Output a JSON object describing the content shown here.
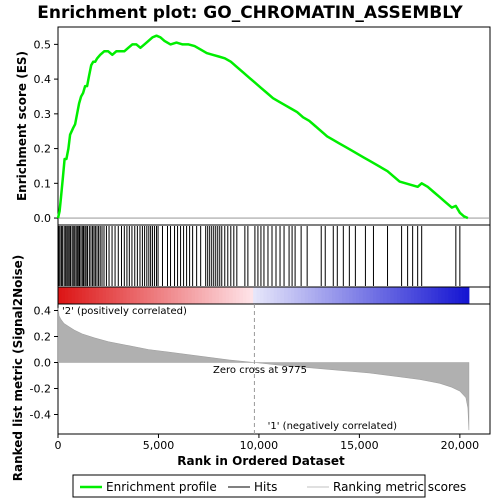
{
  "chart_data": {
    "type": "line",
    "title": "Enrichment plot: GO_CHROMATIN_ASSEMBLY",
    "top_panel": {
      "ylabel": "Enrichment score (ES)",
      "ylim": [
        -0.02,
        0.55
      ],
      "yticks": [
        "0.0",
        "0.1",
        "0.2",
        "0.3",
        "0.4",
        "0.5"
      ],
      "ytick_values": [
        0.0,
        0.1,
        0.2,
        0.3,
        0.4,
        0.5
      ],
      "series": [
        {
          "name": "Enrichment profile",
          "color": "#00ee00",
          "x": [
            0,
            80,
            150,
            250,
            330,
            420,
            520,
            600,
            680,
            760,
            850,
            950,
            1050,
            1150,
            1250,
            1350,
            1450,
            1550,
            1650,
            1750,
            1850,
            1950,
            2100,
            2300,
            2500,
            2700,
            2900,
            3100,
            3300,
            3500,
            3700,
            3900,
            4100,
            4300,
            4500,
            4700,
            4900,
            5100,
            5300,
            5600,
            5900,
            6200,
            6500,
            6800,
            7100,
            7400,
            7700,
            8000,
            8300,
            8600,
            8900,
            9200,
            9500,
            9800,
            10100,
            10400,
            10700,
            11000,
            11300,
            11600,
            11900,
            12200,
            12500,
            12800,
            13100,
            13400,
            13700,
            14000,
            14300,
            14600,
            14900,
            15200,
            15500,
            15800,
            16100,
            16400,
            16700,
            17000,
            17300,
            17600,
            17900,
            18100,
            18400,
            18700,
            19000,
            19300,
            19600,
            19800,
            20000,
            20200,
            20400
          ],
          "y": [
            0.0,
            0.02,
            0.06,
            0.12,
            0.17,
            0.17,
            0.2,
            0.24,
            0.25,
            0.26,
            0.27,
            0.3,
            0.33,
            0.35,
            0.36,
            0.38,
            0.38,
            0.41,
            0.44,
            0.45,
            0.45,
            0.46,
            0.47,
            0.48,
            0.48,
            0.47,
            0.48,
            0.48,
            0.48,
            0.49,
            0.5,
            0.5,
            0.49,
            0.5,
            0.51,
            0.52,
            0.525,
            0.52,
            0.51,
            0.5,
            0.505,
            0.5,
            0.5,
            0.495,
            0.485,
            0.475,
            0.47,
            0.465,
            0.46,
            0.45,
            0.435,
            0.42,
            0.405,
            0.39,
            0.375,
            0.36,
            0.345,
            0.335,
            0.325,
            0.315,
            0.305,
            0.29,
            0.28,
            0.265,
            0.25,
            0.235,
            0.225,
            0.215,
            0.205,
            0.195,
            0.185,
            0.175,
            0.165,
            0.155,
            0.145,
            0.135,
            0.12,
            0.105,
            0.1,
            0.095,
            0.09,
            0.1,
            0.09,
            0.075,
            0.06,
            0.045,
            0.03,
            0.035,
            0.015,
            0.005,
            0.0
          ]
        }
      ]
    },
    "hits_panel": {
      "hit_positions": [
        40,
        100,
        170,
        230,
        310,
        380,
        440,
        500,
        560,
        620,
        700,
        760,
        830,
        900,
        960,
        1010,
        1070,
        1140,
        1210,
        1270,
        1340,
        1400,
        1470,
        1560,
        1640,
        1720,
        1790,
        1860,
        1940,
        2020,
        2100,
        2190,
        2290,
        2410,
        2540,
        2690,
        2840,
        3000,
        3160,
        3300,
        3430,
        3550,
        3680,
        3820,
        3950,
        4080,
        4200,
        4310,
        4420,
        4520,
        4610,
        4700,
        4800,
        4900,
        4980,
        5200,
        5450,
        5600,
        5800,
        5950,
        6100,
        6250,
        6400,
        6550,
        6700,
        6900,
        7100,
        7350,
        7450,
        7550,
        7650,
        7750,
        7850,
        7950,
        8050,
        8150,
        8300,
        8450,
        8600,
        8750,
        8900,
        9300,
        9450,
        9800,
        9950,
        10100,
        10250,
        10450,
        10650,
        10850,
        11050,
        11250,
        11500,
        11650,
        11800,
        12100,
        12400,
        13100,
        13300,
        13700,
        13900,
        14200,
        14500,
        14800,
        15300,
        15700,
        16400,
        17100,
        17400,
        17650,
        17900,
        18100,
        19800,
        20000
      ]
    },
    "ranked_panel": {
      "ylabel": "Ranked list metric (Signal2Noise)",
      "ylim": [
        -0.55,
        0.45
      ],
      "yticks": [
        "-0.4",
        "-0.2",
        "0.0",
        "0.2",
        "0.4"
      ],
      "ytick_values": [
        -0.4,
        -0.2,
        0.0,
        0.2,
        0.4
      ],
      "x": [
        0,
        50,
        150,
        300,
        500,
        800,
        1200,
        1800,
        2500,
        3500,
        4500,
        5500,
        6500,
        7500,
        8500,
        9775,
        11000,
        12500,
        14000,
        15500,
        17000,
        18000,
        19000,
        19600,
        20000,
        20300,
        20400,
        20450
      ],
      "y": [
        0.42,
        0.36,
        0.33,
        0.3,
        0.28,
        0.25,
        0.22,
        0.19,
        0.16,
        0.13,
        0.1,
        0.08,
        0.06,
        0.04,
        0.02,
        0.0,
        -0.02,
        -0.04,
        -0.06,
        -0.08,
        -0.11,
        -0.13,
        -0.16,
        -0.19,
        -0.22,
        -0.27,
        -0.35,
        -0.52
      ],
      "zero_cross_label": "Zero cross at 9775",
      "zero_cross_x": 9775,
      "positive_label": "'2' (positively correlated)",
      "negative_label": "'1' (negatively correlated)",
      "positive_color": "#cc0000",
      "negative_color": "#0000cc"
    },
    "xaxis": {
      "label": "Rank in Ordered Dataset",
      "xlim": [
        0,
        21500
      ],
      "ticks": [
        "0",
        "5,000",
        "10,000",
        "15,000",
        "20,000"
      ],
      "tick_values": [
        0,
        5000,
        10000,
        15000,
        20000
      ],
      "n_genes": 20450
    },
    "legend": {
      "placement": "bottom",
      "items": [
        {
          "label": "Enrichment profile",
          "color": "#00ee00"
        },
        {
          "label": "Hits",
          "color": "#000000"
        },
        {
          "label": "Ranking metric scores",
          "color": "#c0c0c0"
        }
      ]
    }
  }
}
